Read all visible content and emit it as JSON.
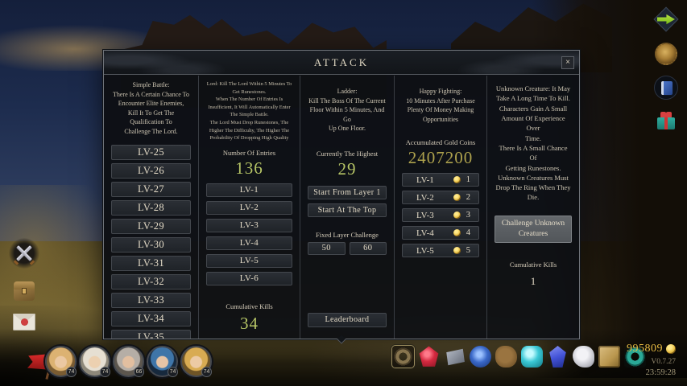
{
  "dialog": {
    "title": "ATTACK",
    "close": "×",
    "simple_battle": {
      "description": "Simple Battle:\nThere Is A Certain Chance To\nEncounter Elite Enemies,\nKill It To Get The Qualification To\nChallenge The Lord.",
      "levels": [
        "LV-25",
        "LV-26",
        "LV-27",
        "LV-28",
        "LV-29",
        "LV-30",
        "LV-31",
        "LV-32",
        "LV-33",
        "LV-34",
        "LV-35"
      ]
    },
    "lord": {
      "description": "Lord: Kill The Lord Within 5 Minutes To Get Runestones.\nWhen The Number Of Entries Is Insufficient, It Will Automatically Enter The Simple Battle.\nThe Lord Must Drop Runestones, The Higher The Difficulty, The Higher The Probability Of Dropping High Quality",
      "entries_label": "Number Of Entries",
      "entries_value": "136",
      "levels": [
        "LV-1",
        "LV-2",
        "LV-3",
        "LV-4",
        "LV-5",
        "LV-6"
      ],
      "kills_label": "Cumulative Kills",
      "kills_value": "34"
    },
    "ladder": {
      "description": "Ladder:\nKill The Boss Of The Current\nFloor Within 5 Minutes, And Go\nUp One Floor.",
      "highest_label": "Currently The Highest",
      "highest_value": "29",
      "start_from_layer1": "Start From Layer 1",
      "start_at_top": "Start At The Top",
      "fixed_layer_label": "Fixed Layer Challenge",
      "fixed_options": [
        "50",
        "60"
      ],
      "leaderboard": "Leaderboard"
    },
    "happy_fighting": {
      "description": "Happy Fighting:\n10 Minutes After Purchase\nPlenty Of Money Making\nOpportunities",
      "gold_label": "Accumulated Gold Coins",
      "gold_value": "2407200",
      "levels": [
        {
          "label": "LV-1",
          "cost": "1"
        },
        {
          "label": "LV-2",
          "cost": "2"
        },
        {
          "label": "LV-3",
          "cost": "3"
        },
        {
          "label": "LV-4",
          "cost": "4"
        },
        {
          "label": "LV-5",
          "cost": "5"
        }
      ]
    },
    "unknown_creature": {
      "description": "Unknown Creature: It May\nTake A Long Time To Kill.\nCharacters Gain A Small\nAmount Of Experience Over\nTime.\nThere Is A Small Chance Of\nGetting Runestones.\nUnknown Creatures Must\nDrop The Ring When They\nDie.",
      "challenge_button": "Challenge Unknown Creatures",
      "kills_label": "Cumulative Kills",
      "kills_value": "1"
    }
  },
  "hud": {
    "right_icons": [
      "go-arrow-icon",
      "medal-icon",
      "book-icon",
      "gift-icon"
    ],
    "left_icons": [
      "crossed-swords-icon",
      "bag-icon",
      "mail-icon",
      "battle-flag-icon"
    ],
    "party": [
      {
        "level": "74"
      },
      {
        "level": "74"
      },
      {
        "level": "66"
      },
      {
        "level": "74"
      },
      {
        "level": "74"
      }
    ],
    "items": [
      "ring",
      "red-gem",
      "metal-ingot",
      "blue-amulet",
      "leather-pouch",
      "cyan-gem",
      "blue-crystal",
      "silver-charm",
      "golden-tome",
      "teal-ring"
    ],
    "gold": "995809",
    "version": "V0.7.27",
    "time": "23:59:28"
  },
  "colors": {
    "accent_green": "#b6c566",
    "accent_gold_number": "#aea24d",
    "gold_text": "#e7bb43",
    "dialog_bg": "#0d1014",
    "button_text": "#e3dac6"
  }
}
